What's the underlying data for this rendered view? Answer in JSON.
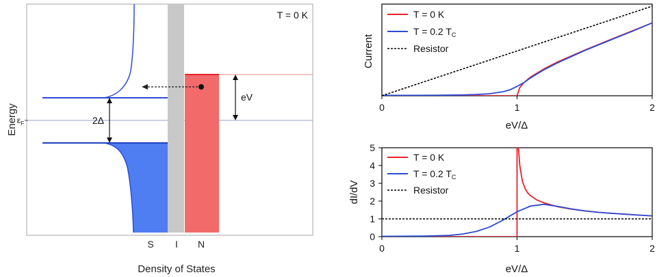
{
  "chart_data": [
    {
      "type": "diagram",
      "annotation": "T = 0 K",
      "ylabel": "Energy",
      "xlabel": "Density of States",
      "fermi_label": "ε",
      "fermi_sub": "F",
      "gap_label": "2Δ",
      "bias_label": "eV",
      "region_labels": [
        "S",
        "I",
        "N"
      ],
      "colors": {
        "superconductor": "#4f7df2",
        "insulator": "#c8c8c8",
        "normal_metal": "#f36a6a",
        "curve": "#2a4bd6",
        "fermi_line": "#9aa6c8"
      }
    },
    {
      "type": "line",
      "xlabel": "eV/Δ",
      "ylabel": "Current",
      "xlim": [
        0,
        2
      ],
      "ylim": [
        0,
        2.25
      ],
      "x_ticks": [
        "0",
        "1",
        "2"
      ],
      "legend_position": "top-left",
      "series": [
        {
          "name": "T = 0 K",
          "color": "#e8202a",
          "style": "solid",
          "x": [
            0,
            0.99,
            1.0,
            1.02,
            1.05,
            1.1,
            1.2,
            1.3,
            1.5,
            1.7,
            1.85,
            2.0
          ],
          "y": [
            0,
            0,
            0,
            0.2,
            0.32,
            0.46,
            0.66,
            0.83,
            1.12,
            1.39,
            1.59,
            1.79
          ]
        },
        {
          "name": "T = 0.2 Tc",
          "name_main": "T = 0.2 T",
          "name_sub": "C",
          "color": "#2a4bd6",
          "style": "solid",
          "x": [
            0,
            0.2,
            0.4,
            0.6,
            0.7,
            0.8,
            0.9,
            0.95,
            1.0,
            1.05,
            1.1,
            1.2,
            1.3,
            1.5,
            1.7,
            1.85,
            2.0
          ],
          "y": [
            0.01,
            0.01,
            0.012,
            0.02,
            0.03,
            0.05,
            0.1,
            0.15,
            0.23,
            0.32,
            0.44,
            0.64,
            0.81,
            1.11,
            1.38,
            1.58,
            1.79
          ]
        },
        {
          "name": "Resistor",
          "color": "#000000",
          "style": "dashed",
          "x": [
            0,
            2
          ],
          "y": [
            0,
            2.2
          ]
        }
      ]
    },
    {
      "type": "line",
      "xlabel": "eV/Δ",
      "ylabel": "dI/dV",
      "xlim": [
        0,
        2
      ],
      "ylim": [
        0,
        5
      ],
      "x_ticks": [
        "0",
        "1",
        "2"
      ],
      "y_ticks": [
        "0",
        "1",
        "2",
        "3",
        "4",
        "5"
      ],
      "legend_position": "top-left",
      "series": [
        {
          "name": "T = 0 K",
          "color": "#e8202a",
          "style": "solid",
          "x": [
            0,
            0.999,
            1.0,
            1.0,
            1.01,
            1.02,
            1.04,
            1.06,
            1.08,
            1.1,
            1.15,
            1.2,
            1.3,
            1.4,
            1.5,
            1.6,
            1.7,
            1.8,
            1.9,
            2.0
          ],
          "y": [
            0,
            0,
            0,
            5.2,
            5.0,
            4.0,
            3.1,
            2.7,
            2.45,
            2.3,
            2.05,
            1.9,
            1.68,
            1.55,
            1.45,
            1.37,
            1.31,
            1.26,
            1.21,
            1.17
          ]
        },
        {
          "name": "T = 0.2 Tc",
          "name_main": "T = 0.2 T",
          "name_sub": "C",
          "color": "#2a4bd6",
          "style": "solid",
          "x": [
            0,
            0.3,
            0.5,
            0.6,
            0.7,
            0.8,
            0.9,
            1.0,
            1.1,
            1.2,
            1.3,
            1.4,
            1.5,
            1.6,
            1.7,
            1.8,
            1.9,
            2.0
          ],
          "y": [
            0.02,
            0.03,
            0.07,
            0.15,
            0.3,
            0.55,
            0.95,
            1.4,
            1.72,
            1.82,
            1.7,
            1.56,
            1.45,
            1.37,
            1.31,
            1.26,
            1.21,
            1.17
          ]
        },
        {
          "name": "Resistor",
          "color": "#000000",
          "style": "dashed",
          "x": [
            0,
            2
          ],
          "y": [
            1,
            1
          ]
        }
      ]
    }
  ]
}
